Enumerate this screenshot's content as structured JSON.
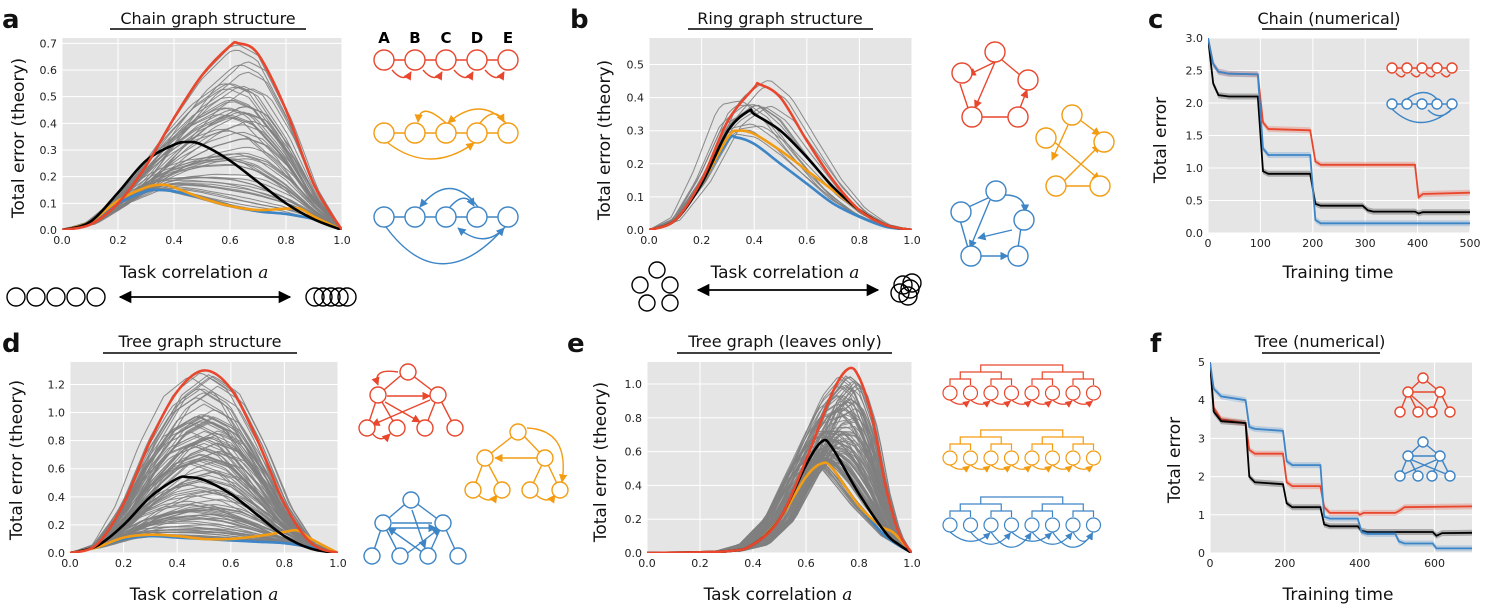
{
  "colors": {
    "red": "#e8472d",
    "orange": "#f39c12",
    "blue": "#3d85c6",
    "black": "#000000",
    "gray": "#7f7f7f"
  },
  "panels": {
    "a": {
      "label": "a",
      "title": "Chain graph structure",
      "xlabel": "Task correlation",
      "xvar": "a",
      "ylabel": "Total error (theory)",
      "node_labels": [
        "A",
        "B",
        "C",
        "D",
        "E"
      ]
    },
    "b": {
      "label": "b",
      "title": "Ring graph structure",
      "xlabel": "Task correlation",
      "xvar": "a",
      "ylabel": "Total error (theory)"
    },
    "c": {
      "label": "c",
      "title": "Chain (numerical)",
      "xlabel": "Training time",
      "ylabel": "Total error"
    },
    "d": {
      "label": "d",
      "title": "Tree graph structure",
      "xlabel": "Task correlation",
      "xvar": "a",
      "ylabel": "Total error (theory)"
    },
    "e": {
      "label": "e",
      "title": "Tree graph (leaves only)",
      "xlabel": "Task correlation",
      "xvar": "a",
      "ylabel": "Total error (theory)"
    },
    "f": {
      "label": "f",
      "title": "Tree (numerical)",
      "xlabel": "Training time",
      "ylabel": "Total error"
    }
  },
  "chart_data": [
    {
      "panel": "a",
      "type": "line",
      "xlim": [
        0,
        1
      ],
      "ylim": [
        0,
        0.72
      ],
      "xticks": [
        0,
        0.2,
        0.4,
        0.6,
        0.8,
        1.0
      ],
      "yticks": [
        0,
        0.1,
        0.2,
        0.3,
        0.4,
        0.5,
        0.6,
        0.7
      ],
      "series": [
        {
          "color": "red",
          "x": [
            0,
            0.1,
            0.2,
            0.3,
            0.4,
            0.5,
            0.6,
            0.63,
            0.7,
            0.8,
            0.9,
            1.0
          ],
          "y": [
            0,
            0.02,
            0.1,
            0.24,
            0.42,
            0.58,
            0.69,
            0.7,
            0.66,
            0.45,
            0.17,
            0
          ]
        },
        {
          "color": "black",
          "x": [
            0,
            0.1,
            0.2,
            0.3,
            0.4,
            0.45,
            0.5,
            0.6,
            0.7,
            0.8,
            0.9,
            1.0
          ],
          "y": [
            0,
            0.03,
            0.14,
            0.26,
            0.32,
            0.33,
            0.32,
            0.26,
            0.18,
            0.1,
            0.04,
            0
          ]
        },
        {
          "color": "orange",
          "x": [
            0,
            0.1,
            0.2,
            0.3,
            0.36,
            0.4,
            0.5,
            0.6,
            0.7,
            0.8,
            0.85,
            0.9,
            1.0
          ],
          "y": [
            0,
            0.03,
            0.11,
            0.16,
            0.17,
            0.16,
            0.12,
            0.09,
            0.075,
            0.08,
            0.08,
            0.05,
            0
          ]
        },
        {
          "color": "blue",
          "x": [
            0,
            0.1,
            0.2,
            0.3,
            0.34,
            0.4,
            0.5,
            0.6,
            0.7,
            0.8,
            0.9,
            1.0
          ],
          "y": [
            0,
            0.03,
            0.1,
            0.145,
            0.15,
            0.145,
            0.12,
            0.09,
            0.07,
            0.06,
            0.04,
            0
          ]
        }
      ]
    },
    {
      "panel": "b",
      "type": "line",
      "xlim": [
        0,
        1
      ],
      "ylim": [
        0,
        0.58
      ],
      "xticks": [
        0,
        0.2,
        0.4,
        0.6,
        0.8,
        1.0
      ],
      "yticks": [
        0,
        0.1,
        0.2,
        0.3,
        0.4,
        0.5
      ],
      "series": [
        {
          "color": "red",
          "x": [
            0,
            0.1,
            0.2,
            0.3,
            0.4,
            0.42,
            0.5,
            0.6,
            0.7,
            0.8,
            0.9,
            1.0
          ],
          "y": [
            0,
            0.03,
            0.15,
            0.33,
            0.43,
            0.44,
            0.4,
            0.27,
            0.15,
            0.06,
            0.015,
            0
          ]
        },
        {
          "color": "black",
          "x": [
            0,
            0.1,
            0.2,
            0.3,
            0.38,
            0.4,
            0.5,
            0.6,
            0.7,
            0.8,
            0.9,
            1.0
          ],
          "y": [
            0,
            0.03,
            0.14,
            0.3,
            0.36,
            0.35,
            0.3,
            0.22,
            0.13,
            0.06,
            0.015,
            0
          ]
        },
        {
          "color": "orange",
          "x": [
            0,
            0.1,
            0.2,
            0.3,
            0.34,
            0.4,
            0.5,
            0.6,
            0.7,
            0.8,
            0.9,
            1.0
          ],
          "y": [
            0,
            0.03,
            0.14,
            0.28,
            0.3,
            0.29,
            0.24,
            0.18,
            0.12,
            0.06,
            0.015,
            0
          ]
        },
        {
          "color": "blue",
          "x": [
            0,
            0.1,
            0.2,
            0.3,
            0.33,
            0.4,
            0.5,
            0.6,
            0.7,
            0.8,
            0.9,
            1.0
          ],
          "y": [
            0,
            0.03,
            0.14,
            0.27,
            0.28,
            0.26,
            0.2,
            0.14,
            0.08,
            0.04,
            0.01,
            0
          ]
        }
      ]
    },
    {
      "panel": "c",
      "type": "line",
      "xlim": [
        0,
        500
      ],
      "ylim": [
        0,
        3.0
      ],
      "xticks": [
        0,
        100,
        200,
        300,
        400,
        500
      ],
      "yticks": [
        0.0,
        0.5,
        1.0,
        1.5,
        2.0,
        2.5,
        3.0
      ],
      "series": [
        {
          "color": "red",
          "x": [
            0,
            10,
            20,
            40,
            95,
            105,
            115,
            195,
            205,
            215,
            395,
            402,
            410,
            500
          ],
          "y": [
            3.0,
            2.6,
            2.48,
            2.45,
            2.44,
            1.7,
            1.6,
            1.58,
            1.1,
            1.05,
            1.05,
            0.55,
            0.6,
            0.62
          ]
        },
        {
          "color": "black",
          "x": [
            0,
            10,
            20,
            40,
            95,
            105,
            115,
            195,
            205,
            215,
            295,
            305,
            315,
            395,
            402,
            410,
            500
          ],
          "y": [
            3.0,
            2.3,
            2.12,
            2.1,
            2.1,
            0.95,
            0.91,
            0.91,
            0.45,
            0.42,
            0.42,
            0.35,
            0.33,
            0.33,
            0.3,
            0.32,
            0.32
          ]
        },
        {
          "color": "blue",
          "x": [
            0,
            10,
            20,
            40,
            95,
            105,
            115,
            195,
            205,
            215,
            500
          ],
          "y": [
            3.0,
            2.6,
            2.48,
            2.45,
            2.44,
            1.3,
            1.2,
            1.2,
            0.2,
            0.15,
            0.15
          ]
        }
      ]
    },
    {
      "panel": "d",
      "type": "line",
      "xlim": [
        0,
        1
      ],
      "ylim": [
        0,
        1.36
      ],
      "xticks": [
        0,
        0.2,
        0.4,
        0.6,
        0.8,
        1.0
      ],
      "yticks": [
        0,
        0.2,
        0.4,
        0.6,
        0.8,
        1.0,
        1.2
      ],
      "series": [
        {
          "color": "red",
          "x": [
            0,
            0.1,
            0.2,
            0.3,
            0.4,
            0.5,
            0.6,
            0.7,
            0.8,
            0.9,
            1.0
          ],
          "y": [
            0,
            0.06,
            0.35,
            0.8,
            1.15,
            1.3,
            1.17,
            0.8,
            0.35,
            0.07,
            0
          ]
        },
        {
          "color": "black",
          "x": [
            0,
            0.1,
            0.2,
            0.3,
            0.4,
            0.44,
            0.5,
            0.6,
            0.7,
            0.8,
            0.9,
            1.0
          ],
          "y": [
            0,
            0.05,
            0.2,
            0.4,
            0.53,
            0.54,
            0.52,
            0.42,
            0.27,
            0.12,
            0.03,
            0
          ]
        },
        {
          "color": "orange",
          "x": [
            0,
            0.1,
            0.2,
            0.3,
            0.4,
            0.5,
            0.6,
            0.7,
            0.8,
            0.85,
            0.9,
            1.0
          ],
          "y": [
            0,
            0.04,
            0.11,
            0.13,
            0.12,
            0.1,
            0.1,
            0.12,
            0.15,
            0.16,
            0.1,
            0
          ]
        },
        {
          "color": "blue",
          "x": [
            0,
            0.1,
            0.2,
            0.3,
            0.4,
            0.5,
            0.6,
            0.7,
            0.8,
            0.9,
            1.0
          ],
          "y": [
            0,
            0.04,
            0.1,
            0.12,
            0.11,
            0.1,
            0.09,
            0.08,
            0.07,
            0.04,
            0
          ]
        }
      ]
    },
    {
      "panel": "e",
      "type": "line",
      "xlim": [
        0,
        1
      ],
      "ylim": [
        0,
        1.13
      ],
      "xticks": [
        0,
        0.2,
        0.4,
        0.6,
        0.8,
        1.0
      ],
      "yticks": [
        0,
        0.2,
        0.4,
        0.6,
        0.8,
        1.0
      ],
      "series": [
        {
          "color": "red",
          "x": [
            0,
            0.3,
            0.4,
            0.5,
            0.6,
            0.7,
            0.76,
            0.8,
            0.85,
            0.9,
            0.95,
            1.0
          ],
          "y": [
            0,
            0.01,
            0.05,
            0.2,
            0.55,
            0.95,
            1.09,
            1.04,
            0.8,
            0.4,
            0.12,
            0
          ]
        },
        {
          "color": "black",
          "x": [
            0,
            0.3,
            0.4,
            0.5,
            0.6,
            0.66,
            0.7,
            0.8,
            0.9,
            0.95,
            1.0
          ],
          "y": [
            0,
            0.01,
            0.05,
            0.2,
            0.52,
            0.66,
            0.62,
            0.35,
            0.12,
            0.05,
            0
          ]
        },
        {
          "color": "orange",
          "x": [
            0,
            0.3,
            0.4,
            0.5,
            0.6,
            0.66,
            0.7,
            0.8,
            0.88,
            0.93,
            1.0
          ],
          "y": [
            0,
            0.01,
            0.05,
            0.2,
            0.45,
            0.53,
            0.5,
            0.28,
            0.16,
            0.12,
            0
          ]
        },
        {
          "color": "blue",
          "x": [
            0,
            0.3,
            0.4,
            0.5,
            0.6,
            0.66,
            0.7,
            0.8,
            0.9,
            1.0
          ],
          "y": [
            0,
            0.01,
            0.05,
            0.2,
            0.45,
            0.53,
            0.5,
            0.28,
            0.1,
            0
          ]
        }
      ]
    },
    {
      "panel": "f",
      "type": "line",
      "xlim": [
        0,
        700
      ],
      "ylim": [
        0,
        5
      ],
      "xticks": [
        0,
        200,
        400,
        600
      ],
      "yticks": [
        0,
        1,
        2,
        3,
        4,
        5
      ],
      "series": [
        {
          "color": "red",
          "x": [
            0,
            10,
            30,
            95,
            105,
            120,
            195,
            205,
            220,
            295,
            305,
            320,
            395,
            400,
            410,
            495,
            505,
            520,
            700
          ],
          "y": [
            5,
            3.8,
            3.5,
            3.4,
            2.7,
            2.6,
            2.6,
            1.85,
            1.75,
            1.75,
            1.2,
            1.05,
            1.05,
            1.0,
            1.05,
            1.05,
            1.1,
            1.2,
            1.22
          ]
        },
        {
          "color": "black",
          "x": [
            0,
            10,
            30,
            95,
            105,
            120,
            195,
            205,
            220,
            295,
            305,
            320,
            395,
            405,
            420,
            595,
            605,
            620,
            700
          ],
          "y": [
            5,
            3.7,
            3.45,
            3.4,
            2.0,
            1.85,
            1.8,
            1.3,
            1.2,
            1.2,
            0.75,
            0.7,
            0.7,
            0.58,
            0.55,
            0.55,
            0.45,
            0.52,
            0.53
          ]
        },
        {
          "color": "blue",
          "x": [
            0,
            10,
            30,
            95,
            105,
            120,
            195,
            205,
            220,
            295,
            305,
            320,
            395,
            405,
            420,
            495,
            505,
            520,
            595,
            605,
            620,
            700
          ],
          "y": [
            5,
            4.3,
            4.1,
            4.0,
            3.3,
            3.25,
            3.2,
            2.4,
            2.3,
            2.3,
            0.95,
            0.9,
            0.9,
            0.55,
            0.5,
            0.5,
            0.3,
            0.25,
            0.25,
            0.12,
            0.12,
            0.12
          ]
        }
      ]
    }
  ]
}
